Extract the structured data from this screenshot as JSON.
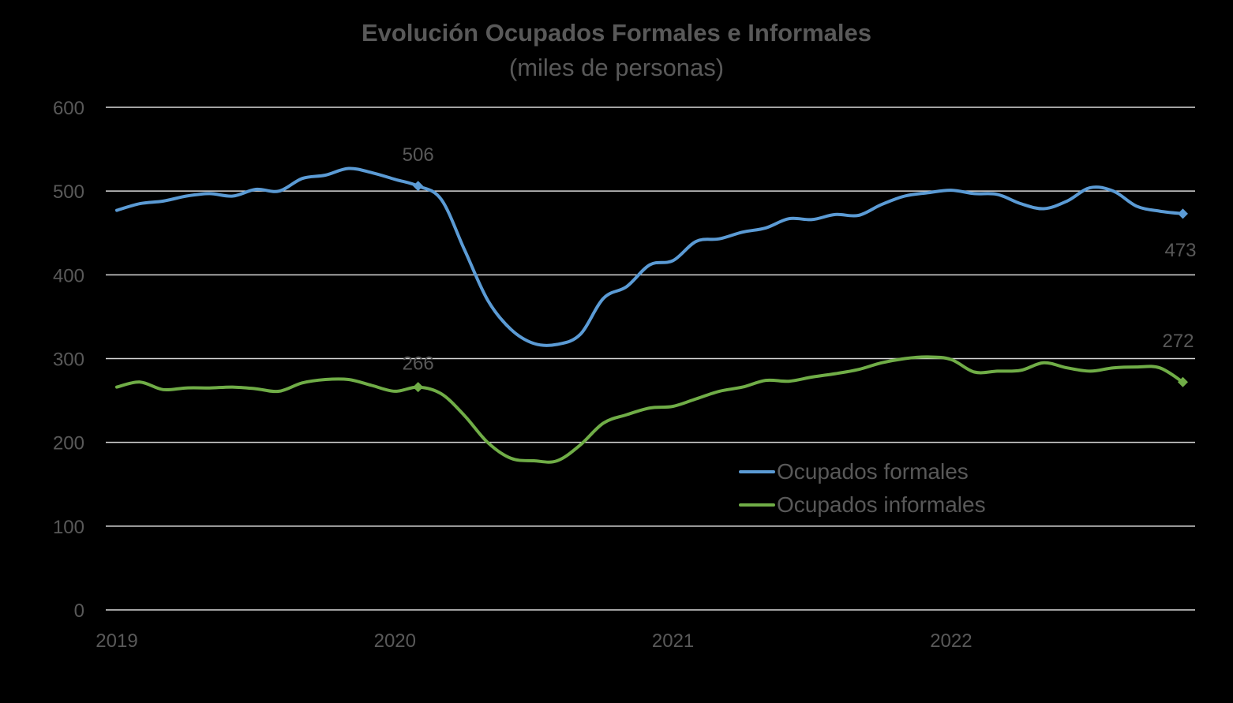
{
  "chart_data": {
    "type": "line",
    "title": "Evolución Ocupados Formales e Informales",
    "subtitle": "(miles de personas)",
    "xlabel": "",
    "ylabel": "",
    "ylim": [
      0,
      600
    ],
    "yticks": [
      "0",
      "100",
      "200",
      "300",
      "400",
      "500",
      "600"
    ],
    "xticks": [
      "2019",
      "2020",
      "2021",
      "2022"
    ],
    "grid": true,
    "legend_position": "center-right",
    "x_start": "2019-01",
    "x_end": "2022-11",
    "series": [
      {
        "name": "Ocupados formales",
        "color": "#5b9bd5",
        "values": [
          477,
          485,
          488,
          494,
          497,
          494,
          502,
          500,
          515,
          519,
          527,
          522,
          514,
          506,
          490,
          430,
          370,
          335,
          318,
          317,
          329,
          372,
          386,
          412,
          417,
          440,
          443,
          451,
          456,
          467,
          466,
          472,
          471,
          484,
          494,
          498,
          501,
          497,
          496,
          485,
          479,
          488,
          504,
          500,
          482,
          476,
          473
        ]
      },
      {
        "name": "Ocupados informales",
        "color": "#70ad47",
        "values": [
          266,
          272,
          263,
          265,
          265,
          266,
          264,
          261,
          271,
          275,
          275,
          268,
          261,
          266,
          258,
          232,
          200,
          181,
          178,
          178,
          197,
          223,
          233,
          241,
          243,
          252,
          261,
          266,
          274,
          273,
          278,
          282,
          287,
          295,
          300,
          302,
          299,
          284,
          285,
          286,
          295,
          289,
          285,
          289,
          290,
          289,
          272
        ]
      }
    ],
    "annotations": [
      {
        "series": 0,
        "index": 13,
        "label": "506"
      },
      {
        "series": 1,
        "index": 13,
        "label": "266"
      },
      {
        "series": 0,
        "index": 46,
        "label": "473"
      },
      {
        "series": 1,
        "index": 46,
        "label": "272"
      }
    ]
  }
}
